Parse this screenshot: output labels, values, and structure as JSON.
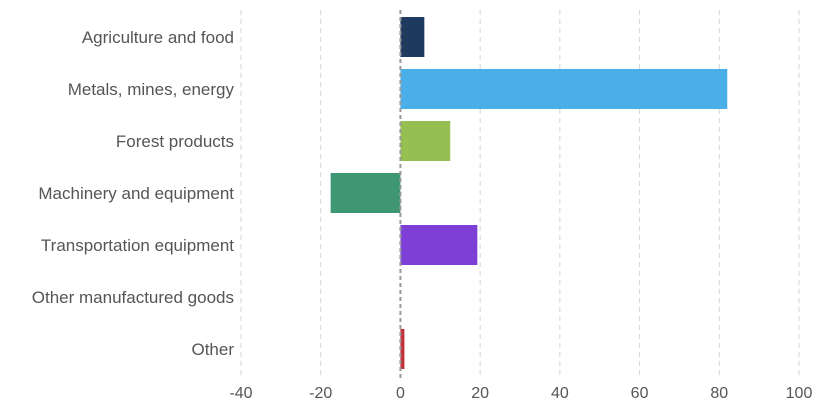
{
  "chart_data": {
    "type": "bar",
    "orientation": "horizontal",
    "categories": [
      "Agriculture and food",
      "Metals, mines, energy",
      "Forest products",
      "Machinery and equipment",
      "Transportation equipment",
      "Other manufactured goods",
      "Other"
    ],
    "values": [
      6,
      82,
      12.5,
      -17.5,
      19.3,
      0,
      1
    ],
    "colors": [
      "#1f3a5f",
      "#4aaee8",
      "#96bf52",
      "#3f9672",
      "#7e3fd6",
      "#b0b0b0",
      "#c0303a"
    ],
    "xlim": [
      -40,
      100
    ],
    "xticks": [
      -40,
      -20,
      0,
      20,
      40,
      60,
      80,
      100
    ],
    "grid": true,
    "legend": "none",
    "title": "",
    "xlabel": "",
    "ylabel": ""
  }
}
